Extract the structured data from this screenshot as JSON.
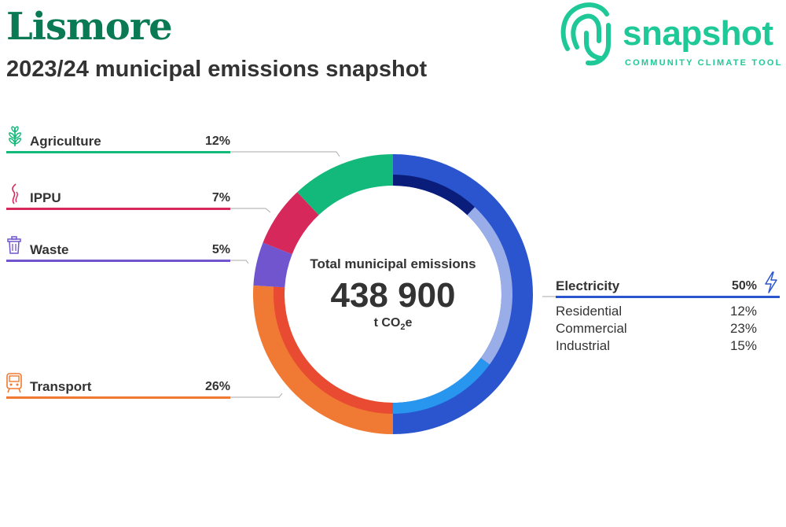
{
  "header": {
    "title": "Lismore",
    "subtitle": "2023/24 municipal emissions snapshot"
  },
  "logo": {
    "wordmark": "snapshot",
    "tagline": "COMMUNITY CLIMATE TOOL"
  },
  "center": {
    "label": "Total municipal emissions",
    "value": "438 900",
    "unit_prefix": "t CO",
    "unit_sub": "2",
    "unit_suffix": "e"
  },
  "colors": {
    "agriculture": "#12b97a",
    "ippu": "#d6285a",
    "waste": "#7055cf",
    "transport": "#f07a33",
    "transport_inner": "#e84a32",
    "electricity": "#2a55cf",
    "residential": "#0a1d7a",
    "commercial": "#99ade8",
    "industrial": "#2896ef"
  },
  "chart_data": {
    "type": "pie",
    "total": 438900,
    "unit": "t CO2e",
    "sectors": [
      {
        "name": "Electricity",
        "value": 50,
        "icon": "lightning-icon",
        "subsectors": [
          {
            "name": "Residential",
            "value": 12
          },
          {
            "name": "Commercial",
            "value": 23
          },
          {
            "name": "Industrial",
            "value": 15
          }
        ]
      },
      {
        "name": "Transport",
        "value": 26,
        "icon": "train-icon"
      },
      {
        "name": "Waste",
        "value": 5,
        "icon": "trash-bin-icon"
      },
      {
        "name": "IPPU",
        "value": 7,
        "icon": "smoke-icon"
      },
      {
        "name": "Agriculture",
        "value": 12,
        "icon": "plant-icon"
      }
    ],
    "labels": {
      "agriculture": "Agriculture",
      "agriculture_pct": "12%",
      "ippu": "IPPU",
      "ippu_pct": "7%",
      "waste": "Waste",
      "waste_pct": "5%",
      "transport": "Transport",
      "transport_pct": "26%",
      "electricity": "Electricity",
      "electricity_pct": "50%",
      "residential": "Residential",
      "residential_pct": "12%",
      "commercial": "Commercial",
      "commercial_pct": "23%",
      "industrial": "Industrial",
      "industrial_pct": "15%"
    }
  }
}
